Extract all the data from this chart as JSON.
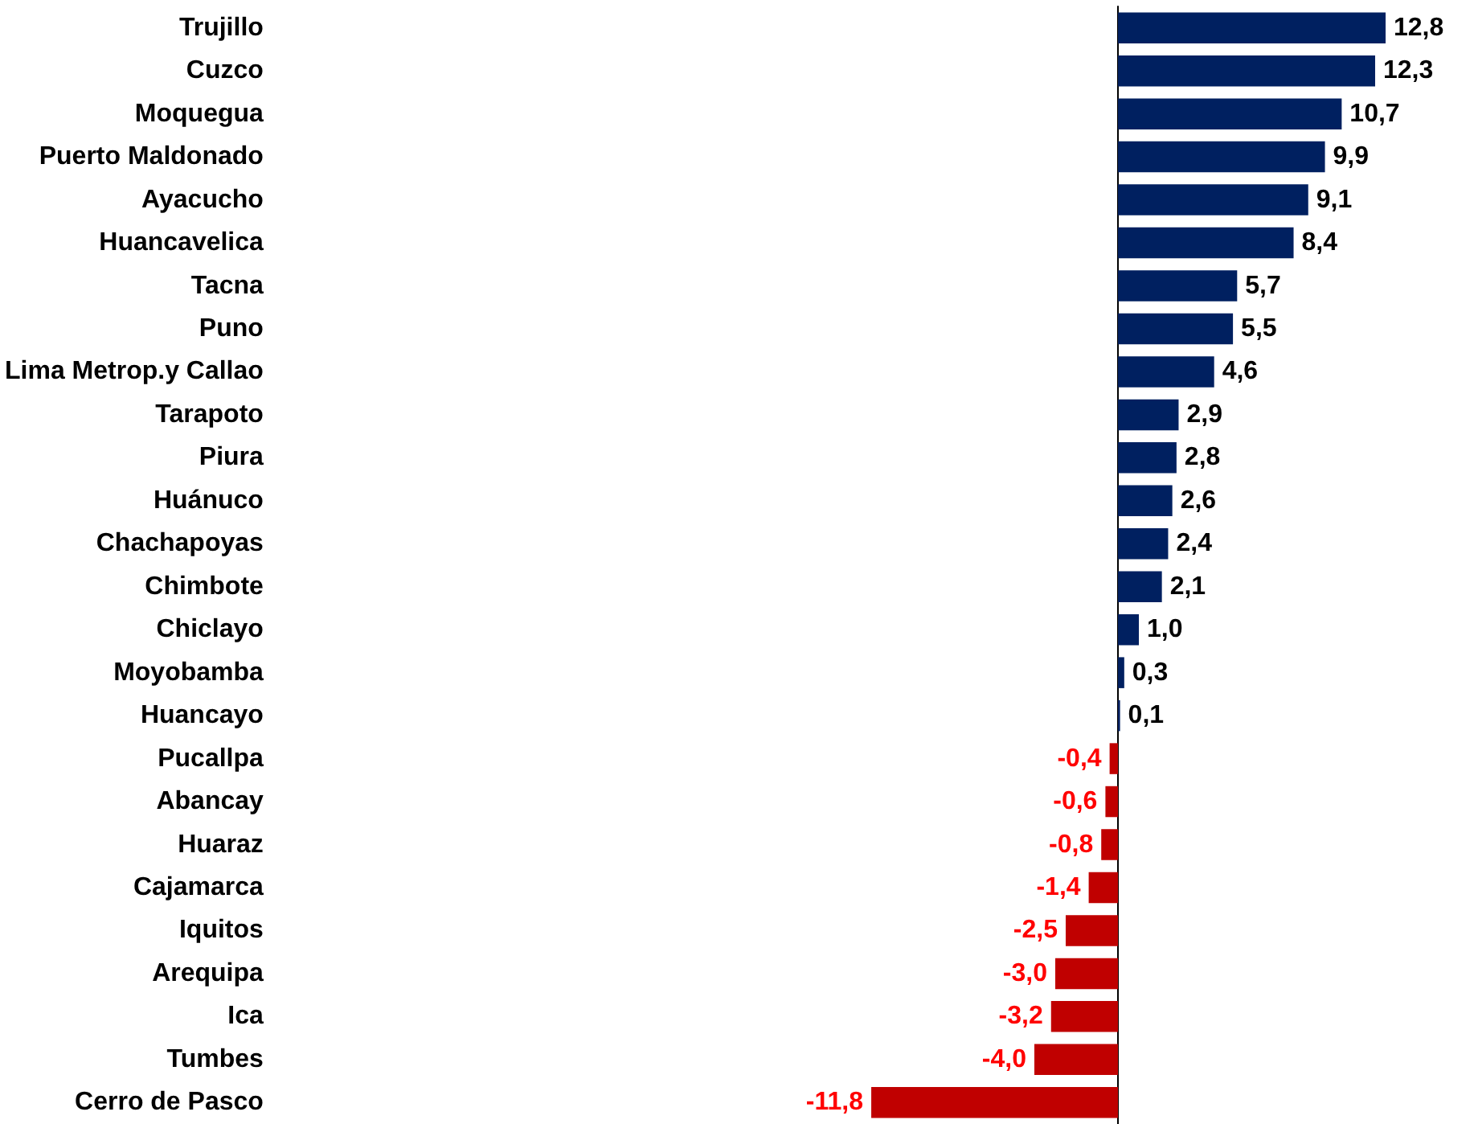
{
  "chart_data": {
    "type": "bar",
    "orientation": "horizontal",
    "data_labels": true,
    "categories": [
      "Trujillo",
      "Cuzco",
      "Moquegua",
      "Puerto Maldonado",
      "Ayacucho",
      "Huancavelica",
      "Tacna",
      "Puno",
      "Lima Metrop.y Callao",
      "Tarapoto",
      "Piura",
      "Huánuco",
      "Chachapoyas",
      "Chimbote",
      "Chiclayo",
      "Moyobamba",
      "Huancayo",
      "Pucallpa",
      "Abancay",
      "Huaraz",
      "Cajamarca",
      "Iquitos",
      "Arequipa",
      "Ica",
      "Tumbes",
      "Cerro de Pasco"
    ],
    "values": [
      12.8,
      12.3,
      10.7,
      9.9,
      9.1,
      8.4,
      5.7,
      5.5,
      4.6,
      2.9,
      2.8,
      2.6,
      2.4,
      2.1,
      1.0,
      0.3,
      0.1,
      -0.4,
      -0.6,
      -0.8,
      -1.4,
      -2.5,
      -3.0,
      -3.2,
      -4.0,
      -11.8
    ],
    "value_labels": [
      "12,8",
      "12,3",
      "10,7",
      "9,9",
      "9,1",
      "8,4",
      "5,7",
      "5,5",
      "4,6",
      "2,9",
      "2,8",
      "2,6",
      "2,4",
      "2,1",
      "1,0",
      "0,3",
      "0,1",
      "-0,4",
      "-0,6",
      "-0,8",
      "-1,4",
      "-2,5",
      "-3,0",
      "-3,2",
      "-4,0",
      "-11,8"
    ],
    "colors": [
      "#002060",
      "#002060",
      "#002060",
      "#002060",
      "#002060",
      "#002060",
      "#002060",
      "#002060",
      "#002060",
      "#002060",
      "#002060",
      "#002060",
      "#002060",
      "#002060",
      "#002060",
      "#002060",
      "#002060",
      "#c00000",
      "#c00000",
      "#c00000",
      "#c00000",
      "#c00000",
      "#c00000",
      "#c00000",
      "#c00000",
      "#c00000"
    ],
    "grid": false
  }
}
